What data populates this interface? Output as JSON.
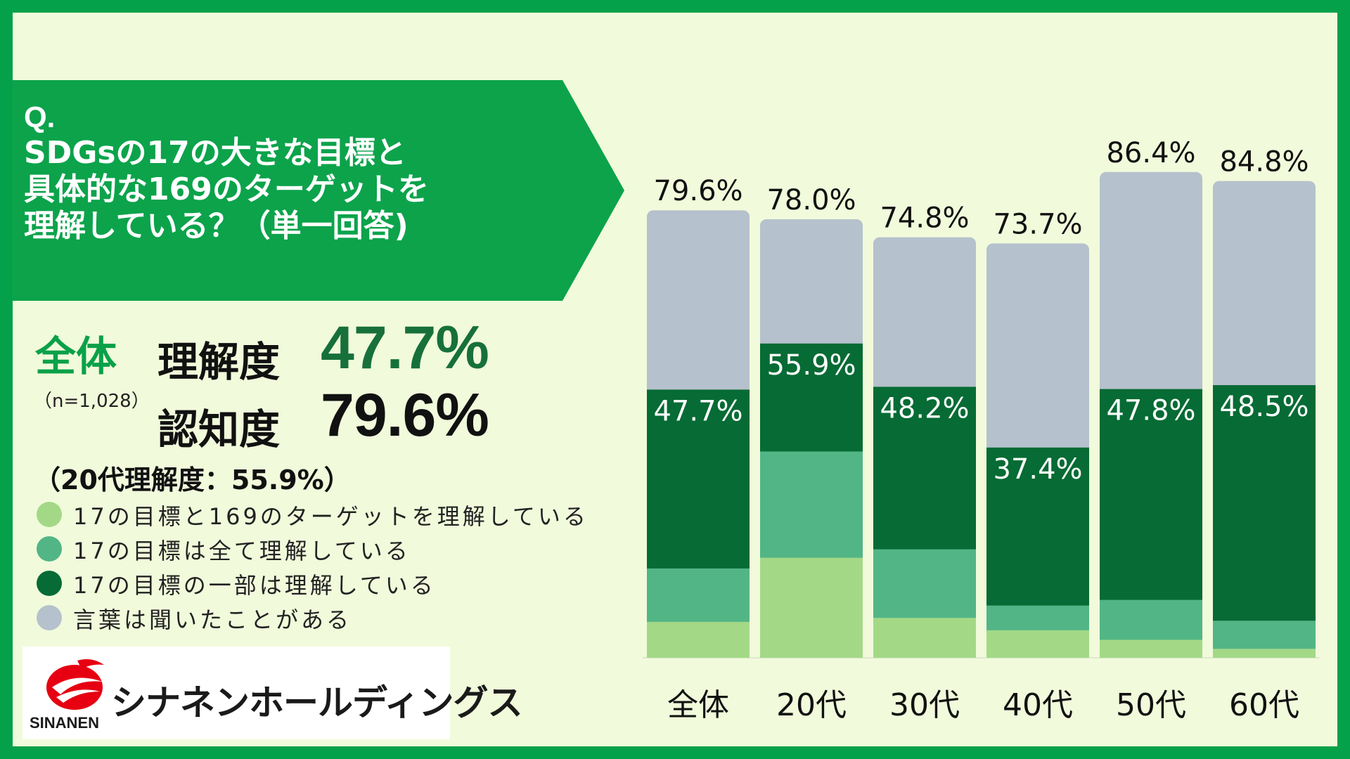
{
  "question": {
    "prefix": "Q.",
    "lines": [
      " SDGsの17の大きな目標と",
      "具体的な169のターゲットを",
      "理解している？（単一回答)"
    ]
  },
  "summary": {
    "label": "全体",
    "sample": "（n=1,028）",
    "metrics": [
      {
        "name": "理解度",
        "value": "47.7%",
        "color": "#17703a"
      },
      {
        "name": "認知度",
        "value": "79.6%",
        "color": "#111111"
      }
    ],
    "note": "（20代理解度：55.9%）"
  },
  "legend": [
    {
      "label": "17の目標と169のターゲットを理解している",
      "color": "#a3d986"
    },
    {
      "label": "17の目標は全て理解している",
      "color": "#52b586"
    },
    {
      "label": "17の目標の一部は理解している",
      "color": "#066b34"
    },
    {
      "label": "言葉は聞いたことがある",
      "color": "#b5c1cc"
    }
  ],
  "logo": {
    "name": "シナネンホールディングス",
    "sub": "SINANEN",
    "mark_color": "#e60012"
  },
  "chart_data": {
    "type": "bar",
    "stacked": true,
    "categories": [
      "全体",
      "20代",
      "30代",
      "40代",
      "50代",
      "60代"
    ],
    "ylim": [
      0,
      100
    ],
    "series": [
      {
        "name": "17の目標と169のターゲットを理解している",
        "color": "#a3d986",
        "values": [
          6.4,
          17.8,
          7.1,
          4.9,
          3.2,
          1.6
        ]
      },
      {
        "name": "17の目標は全て理解している",
        "color": "#52b586",
        "values": [
          9.5,
          18.9,
          12.2,
          4.4,
          7.1,
          5.0
        ]
      },
      {
        "name": "17の目標の一部は理解している",
        "color": "#066b34",
        "values": [
          31.8,
          19.2,
          28.9,
          28.1,
          37.5,
          41.9
        ]
      },
      {
        "name": "言葉は聞いたことがある",
        "color": "#b5c1cc",
        "values": [
          31.9,
          22.1,
          26.6,
          36.3,
          38.6,
          36.3
        ]
      }
    ],
    "understanding_labels": [
      "47.7%",
      "55.9%",
      "48.2%",
      "37.4%",
      "47.8%",
      "48.5%"
    ],
    "total_labels": [
      "79.6%",
      "78.0%",
      "74.8%",
      "73.7%",
      "86.4%",
      "84.8%"
    ]
  }
}
